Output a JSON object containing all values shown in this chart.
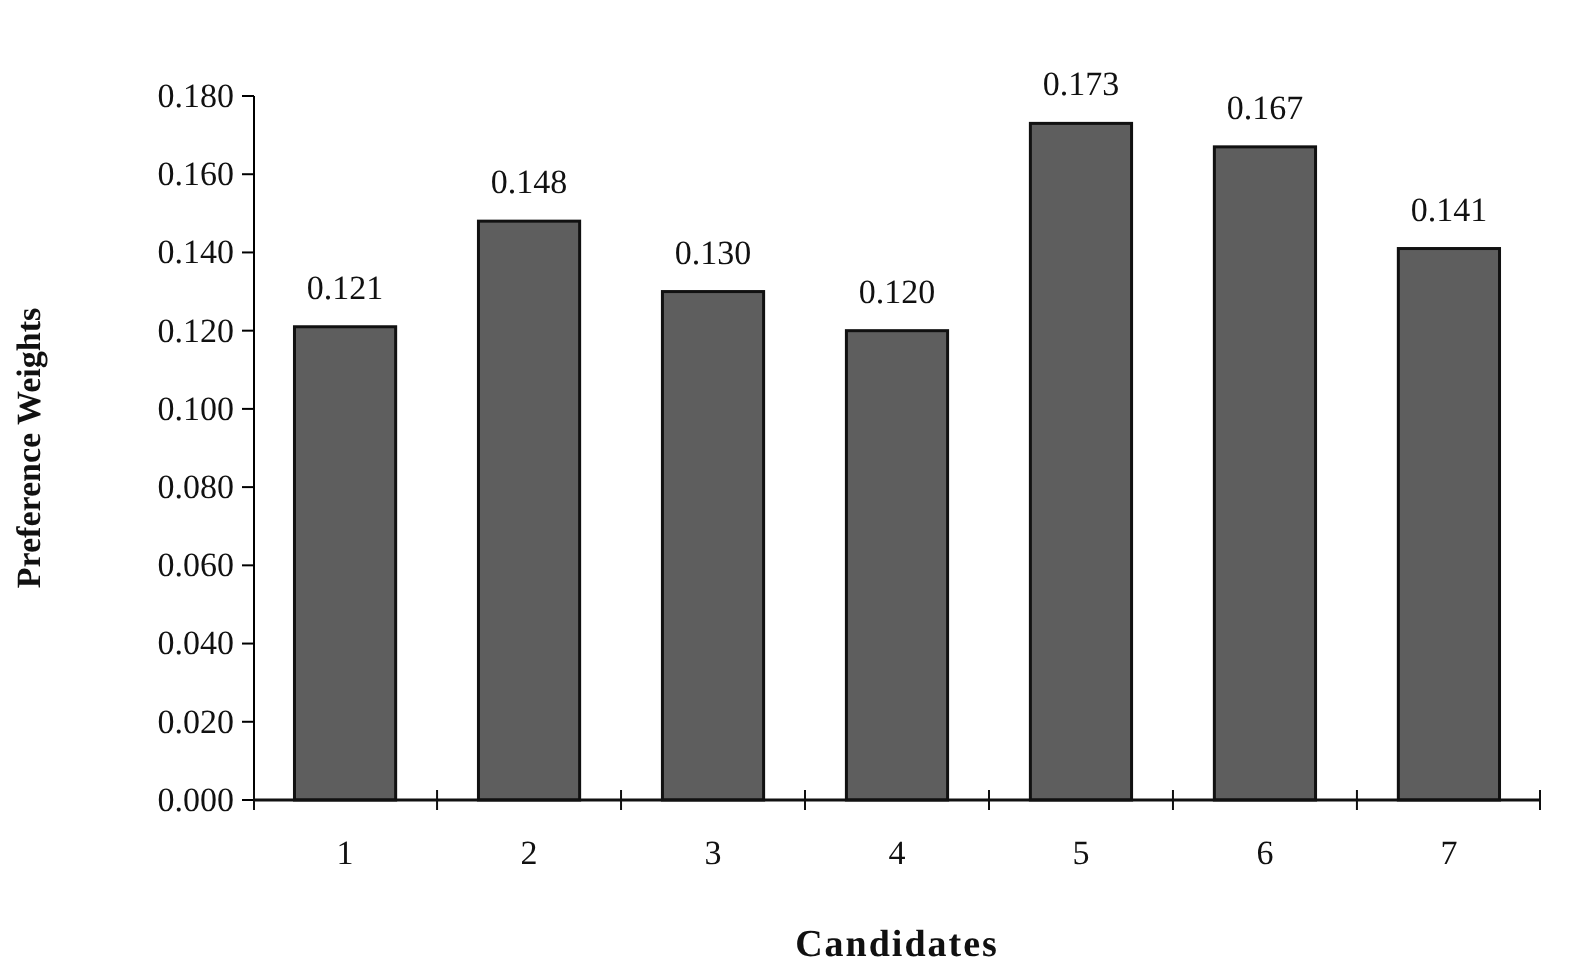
{
  "chart_data": {
    "type": "bar",
    "xlabel": "Candidates",
    "ylabel": "Preference Weights",
    "categories": [
      "1",
      "2",
      "3",
      "4",
      "5",
      "6",
      "7"
    ],
    "values": [
      0.121,
      0.148,
      0.13,
      0.12,
      0.173,
      0.167,
      0.141
    ],
    "value_labels": [
      "0.121",
      "0.148",
      "0.130",
      "0.120",
      "0.173",
      "0.167",
      "0.141"
    ],
    "color": "#5e5e5e",
    "ylim": [
      0,
      0.18
    ],
    "yticks": [
      {
        "value": 0,
        "label": "0.000"
      },
      {
        "value": 0.02,
        "label": "0.020"
      },
      {
        "value": 0.04,
        "label": "0.040"
      },
      {
        "value": 0.06,
        "label": "0.060"
      },
      {
        "value": 0.08,
        "label": "0.080"
      },
      {
        "value": 0.1,
        "label": "0.100"
      },
      {
        "value": 0.12,
        "label": "0.120"
      },
      {
        "value": 0.14,
        "label": "0.140"
      },
      {
        "value": 0.16,
        "label": "0.160"
      },
      {
        "value": 0.18,
        "label": "0.180"
      }
    ]
  }
}
